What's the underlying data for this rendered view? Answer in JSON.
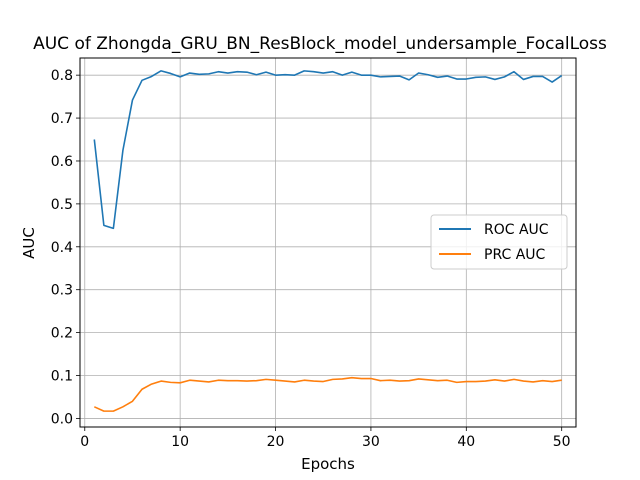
{
  "chart_data": {
    "type": "line",
    "title": "AUC of Zhongda_GRU_BN_ResBlock_model_undersample_FocalLoss",
    "xlabel": "Epochs",
    "ylabel": "AUC",
    "xlim": [
      -0.5,
      51.5
    ],
    "ylim": [
      -0.02,
      0.84
    ],
    "xticks": [
      0,
      10,
      20,
      30,
      40,
      50
    ],
    "yticks": [
      0.0,
      0.1,
      0.2,
      0.3,
      0.4,
      0.5,
      0.6,
      0.7,
      0.8
    ],
    "xtick_labels": [
      "0",
      "10",
      "20",
      "30",
      "40",
      "50"
    ],
    "ytick_labels": [
      "0.0",
      "0.1",
      "0.2",
      "0.3",
      "0.4",
      "0.5",
      "0.6",
      "0.7",
      "0.8"
    ],
    "grid": true,
    "legend_position": "center-right",
    "x": [
      1,
      2,
      3,
      4,
      5,
      6,
      7,
      8,
      9,
      10,
      11,
      12,
      13,
      14,
      15,
      16,
      17,
      18,
      19,
      20,
      21,
      22,
      23,
      24,
      25,
      26,
      27,
      28,
      29,
      30,
      31,
      32,
      33,
      34,
      35,
      36,
      37,
      38,
      39,
      40,
      41,
      42,
      43,
      44,
      45,
      46,
      47,
      48,
      49,
      50
    ],
    "series": [
      {
        "name": "ROC AUC",
        "color": "#1f77b4",
        "values": [
          0.65,
          0.45,
          0.443,
          0.625,
          0.742,
          0.788,
          0.797,
          0.81,
          0.804,
          0.796,
          0.805,
          0.802,
          0.803,
          0.808,
          0.805,
          0.808,
          0.807,
          0.801,
          0.807,
          0.8,
          0.801,
          0.8,
          0.81,
          0.808,
          0.805,
          0.808,
          0.8,
          0.807,
          0.8,
          0.8,
          0.796,
          0.797,
          0.798,
          0.789,
          0.805,
          0.801,
          0.795,
          0.798,
          0.791,
          0.791,
          0.795,
          0.796,
          0.79,
          0.796,
          0.808,
          0.79,
          0.797,
          0.797,
          0.784,
          0.799
        ]
      },
      {
        "name": "PRC AUC",
        "color": "#ff7f0e",
        "values": [
          0.027,
          0.017,
          0.017,
          0.027,
          0.04,
          0.068,
          0.08,
          0.087,
          0.084,
          0.083,
          0.089,
          0.087,
          0.085,
          0.089,
          0.088,
          0.088,
          0.087,
          0.088,
          0.091,
          0.089,
          0.087,
          0.085,
          0.089,
          0.087,
          0.086,
          0.091,
          0.092,
          0.095,
          0.093,
          0.093,
          0.088,
          0.089,
          0.087,
          0.088,
          0.092,
          0.09,
          0.088,
          0.089,
          0.084,
          0.086,
          0.086,
          0.087,
          0.09,
          0.087,
          0.091,
          0.087,
          0.085,
          0.088,
          0.086,
          0.089
        ]
      }
    ]
  }
}
